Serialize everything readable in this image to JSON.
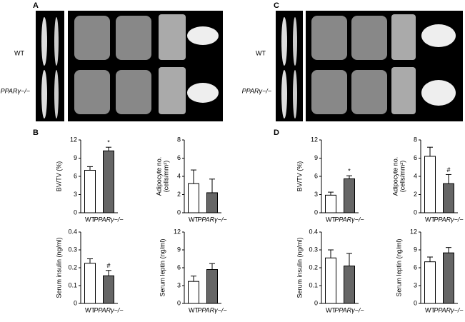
{
  "panels": [
    {
      "letter": "A",
      "rows": [
        "WT",
        "PPARγ−/−"
      ]
    },
    {
      "letter": "B"
    },
    {
      "letter": "C",
      "rows": [
        "WT",
        "PPARγ−/−"
      ]
    },
    {
      "letter": "D"
    }
  ],
  "chart_data": [
    {
      "type": "bar",
      "ylabel": [
        "BV/TV (%)"
      ],
      "categories": [
        "WT",
        "PPARγ−/−"
      ],
      "values": [
        7.0,
        10.2
      ],
      "errors": [
        0.6,
        0.6
      ],
      "colors": [
        "#ffffff",
        "#666666"
      ],
      "markers": [
        {
          "index": 1,
          "text": "*"
        }
      ],
      "ylim": [
        0,
        12
      ],
      "yticks": [
        0,
        3,
        6,
        9,
        12
      ]
    },
    {
      "type": "bar",
      "ylabel": [
        "Adipocyte no.",
        "(cells/mm²)"
      ],
      "categories": [
        "WT",
        "PPARγ−/−"
      ],
      "values": [
        3.2,
        2.2
      ],
      "errors": [
        1.5,
        1.5
      ],
      "colors": [
        "#ffffff",
        "#666666"
      ],
      "markers": [],
      "ylim": [
        0,
        8
      ],
      "yticks": [
        0,
        2,
        4,
        6,
        8
      ]
    },
    {
      "type": "bar",
      "ylabel": [
        "Serum insulin (ng/ml)"
      ],
      "categories": [
        "WT",
        "PPARγ−/−"
      ],
      "values": [
        0.225,
        0.155
      ],
      "errors": [
        0.025,
        0.03
      ],
      "colors": [
        "#ffffff",
        "#666666"
      ],
      "markers": [
        {
          "index": 1,
          "text": "#"
        }
      ],
      "ylim": [
        0,
        0.4
      ],
      "yticks": [
        0,
        0.1,
        0.2,
        0.3,
        0.4
      ]
    },
    {
      "type": "bar",
      "ylabel": [
        "Serum leptin (ng/ml)"
      ],
      "categories": [
        "WT",
        "PPARγ−/−"
      ],
      "values": [
        3.7,
        5.7
      ],
      "errors": [
        0.9,
        1.0
      ],
      "colors": [
        "#ffffff",
        "#666666"
      ],
      "markers": [],
      "ylim": [
        0,
        12
      ],
      "yticks": [
        0,
        3,
        6,
        9,
        12
      ]
    },
    {
      "type": "bar",
      "ylabel": [
        "BV/TV (%)"
      ],
      "categories": [
        "WT",
        "PPARγ−/−"
      ],
      "values": [
        2.9,
        5.6
      ],
      "errors": [
        0.5,
        0.5
      ],
      "colors": [
        "#ffffff",
        "#666666"
      ],
      "markers": [
        {
          "index": 1,
          "text": "*"
        }
      ],
      "ylim": [
        0,
        12
      ],
      "yticks": [
        0,
        3,
        6,
        9,
        12
      ]
    },
    {
      "type": "bar",
      "ylabel": [
        "Adipocyte no.",
        "(cells/mm²)"
      ],
      "categories": [
        "WT",
        "PPARγ−/−"
      ],
      "values": [
        6.2,
        3.2
      ],
      "errors": [
        1.0,
        1.0
      ],
      "colors": [
        "#ffffff",
        "#666666"
      ],
      "markers": [
        {
          "index": 1,
          "text": "#"
        }
      ],
      "ylim": [
        0,
        8
      ],
      "yticks": [
        0,
        2,
        4,
        6,
        8
      ]
    },
    {
      "type": "bar",
      "ylabel": [
        "Serum insulin (ng/ml)"
      ],
      "categories": [
        "WT",
        "PPARγ−/−"
      ],
      "values": [
        0.255,
        0.21
      ],
      "errors": [
        0.045,
        0.07
      ],
      "colors": [
        "#ffffff",
        "#666666"
      ],
      "markers": [],
      "ylim": [
        0,
        0.4
      ],
      "yticks": [
        0,
        0.1,
        0.2,
        0.3,
        0.4
      ]
    },
    {
      "type": "bar",
      "ylabel": [
        "Serum leptin (ng/ml)"
      ],
      "categories": [
        "WT",
        "PPARγ−/−"
      ],
      "values": [
        7.0,
        8.5
      ],
      "errors": [
        0.8,
        0.9
      ],
      "colors": [
        "#ffffff",
        "#666666"
      ],
      "markers": [],
      "ylim": [
        0,
        12
      ],
      "yticks": [
        0,
        3,
        6,
        9,
        12
      ]
    }
  ]
}
